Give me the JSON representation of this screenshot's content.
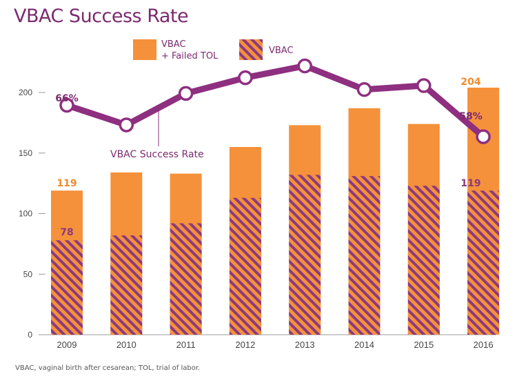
{
  "title": "VBAC Success Rate",
  "footnote": "VBAC, vaginal birth after cesarean; TOL, trial of labor.",
  "legend": {
    "total_line1": "VBAC",
    "total_line2": "+ Failed TOL",
    "vbac": "VBAC"
  },
  "colors": {
    "orange": "#f5913a",
    "purple": "#8b3a80",
    "line": "#8e2f80",
    "grid": "#999999"
  },
  "chart_data": {
    "type": "bar",
    "title": "VBAC Success Rate",
    "categories": [
      "2009",
      "2010",
      "2011",
      "2012",
      "2013",
      "2014",
      "2015",
      "2016"
    ],
    "series": [
      {
        "name": "VBAC + Failed TOL",
        "values": [
          119,
          134,
          133,
          155,
          173,
          187,
          174,
          204
        ]
      },
      {
        "name": "VBAC",
        "values": [
          78,
          82,
          92,
          113,
          132,
          131,
          123,
          119
        ]
      },
      {
        "name": "VBAC Success Rate",
        "values": [
          66,
          61,
          69,
          73,
          76,
          70,
          71,
          58
        ],
        "unit": "%"
      }
    ],
    "yticks": [
      0,
      50,
      100,
      150,
      200
    ],
    "ylim": [
      0,
      220
    ],
    "rate_series_label": "VBAC Success Rate",
    "data_labels": {
      "total_first": "119",
      "vbac_first": "78",
      "rate_first": "66%",
      "total_last": "204",
      "vbac_last": "119",
      "rate_last": "58%"
    }
  }
}
